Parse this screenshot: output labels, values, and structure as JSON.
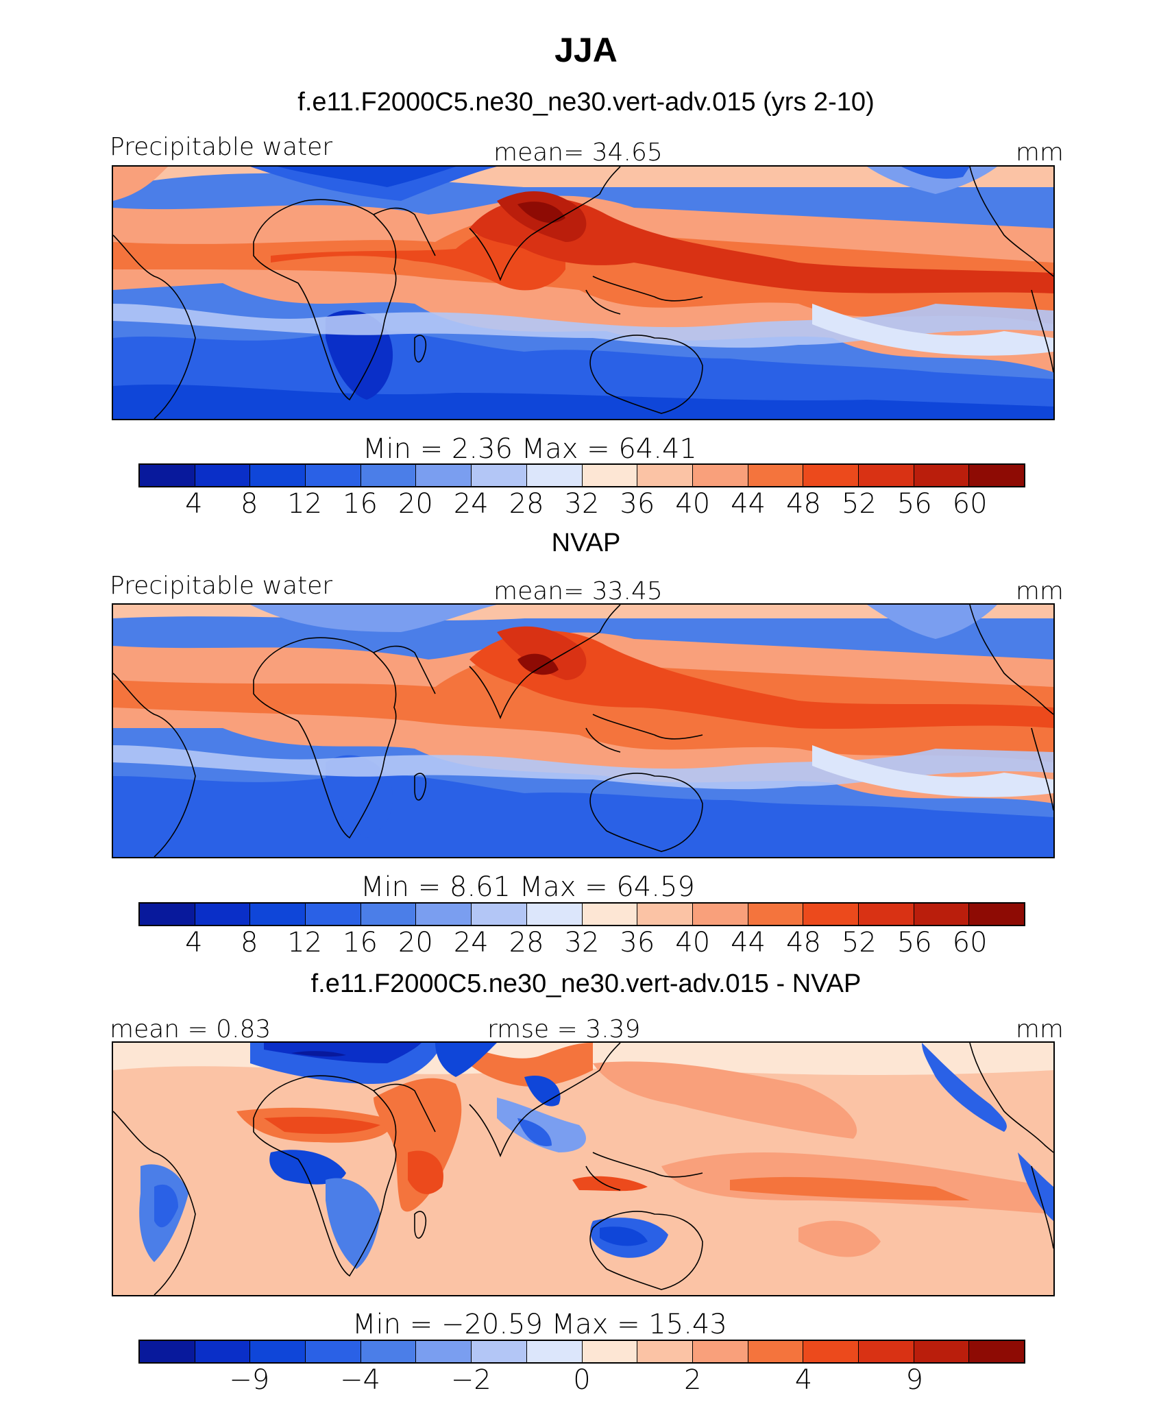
{
  "title": "JJA",
  "palette": [
    "#08199c",
    "#0a2fc8",
    "#0f46d9",
    "#2a61e6",
    "#4b7ee8",
    "#7a9ef0",
    "#b3c6f6",
    "#dce6fb",
    "#fde6d4",
    "#fbc3a5",
    "#f9a07b",
    "#f4743d",
    "#ec4a1c",
    "#d93214",
    "#ba1e0c",
    "#8e0b04"
  ],
  "panels": [
    {
      "subtitle": "f.e11.F2000C5.ne30_ne30.vert-adv.015 (yrs 2-10)",
      "left_label": "Precipitable water",
      "center_label": "mean=   34.65",
      "right_label": "mm",
      "stats": "Min  =      2.36  Max  =     64.41",
      "colorbar_labels": [
        "4",
        "8",
        "12",
        "16",
        "20",
        "24",
        "28",
        "32",
        "36",
        "40",
        "44",
        "48",
        "52",
        "56",
        "60"
      ]
    },
    {
      "subtitle": "NVAP",
      "left_label": "Precipitable water",
      "center_label": "mean=   33.45",
      "right_label": "mm",
      "stats": "Min  =      8.61  Max  =     64.59",
      "colorbar_labels": [
        "4",
        "8",
        "12",
        "16",
        "20",
        "24",
        "28",
        "32",
        "36",
        "40",
        "44",
        "48",
        "52",
        "56",
        "60"
      ]
    },
    {
      "subtitle": "f.e11.F2000C5.ne30_ne30.vert-adv.015 - NVAP",
      "left_label": "mean  =     0.83",
      "center_label": "rmse  =      3.39",
      "right_label": "mm",
      "stats": "Min  = −20.59  Max  =     15.43",
      "colorbar_labels": [
        "−9",
        "−4",
        "−2",
        "0",
        "2",
        "4",
        "9"
      ]
    }
  ]
}
